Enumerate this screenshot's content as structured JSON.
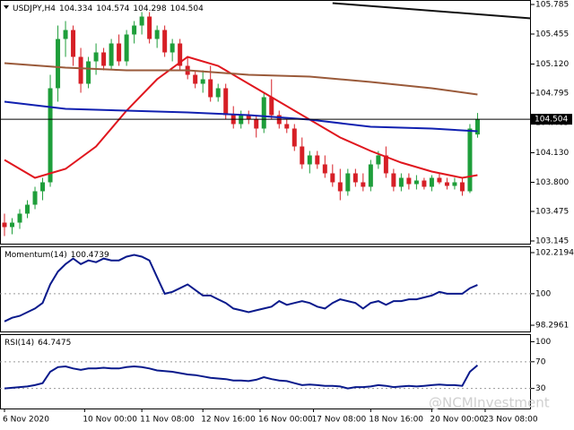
{
  "chart_data": [
    {
      "type": "candlestick",
      "symbol": "USDJPY,H4",
      "open": [
        103.35,
        103.3,
        103.35,
        103.45,
        103.55,
        103.7,
        103.8,
        104.85,
        105.4,
        105.5,
        105.2,
        104.9,
        105.15,
        105.25,
        105.1,
        105.35,
        105.15,
        105.45,
        105.55,
        105.65,
        105.4,
        105.5,
        105.25,
        105.35,
        105.1,
        105.0,
        104.9,
        104.95,
        104.75,
        104.85,
        104.55,
        104.45,
        104.55,
        104.5,
        104.4,
        104.75,
        104.55,
        104.45,
        104.4,
        104.2,
        104.0,
        104.1,
        104.0,
        103.9,
        103.8,
        103.7,
        103.9,
        103.8,
        103.75,
        104.0,
        104.1,
        103.9,
        103.75,
        103.85,
        103.78,
        103.82,
        103.75,
        103.85,
        103.8,
        103.76,
        103.8,
        103.7,
        104.334
      ],
      "high": [
        103.45,
        103.4,
        103.5,
        103.6,
        103.75,
        103.85,
        105.0,
        105.55,
        105.6,
        105.55,
        105.3,
        105.2,
        105.35,
        105.3,
        105.4,
        105.45,
        105.5,
        105.6,
        105.7,
        105.7,
        105.55,
        105.55,
        105.4,
        105.4,
        105.2,
        105.05,
        105.05,
        105.1,
        104.9,
        104.9,
        104.65,
        104.6,
        104.6,
        104.55,
        104.8,
        104.95,
        104.6,
        104.5,
        104.45,
        104.3,
        104.15,
        104.15,
        104.1,
        104.0,
        103.95,
        103.95,
        103.95,
        103.9,
        104.05,
        104.15,
        104.2,
        103.95,
        103.9,
        103.9,
        103.88,
        103.85,
        103.88,
        103.9,
        103.85,
        103.85,
        103.85,
        104.45,
        104.574
      ],
      "low": [
        103.2,
        103.22,
        103.28,
        103.4,
        103.5,
        103.6,
        103.75,
        104.7,
        105.2,
        105.1,
        104.8,
        104.85,
        105.0,
        105.05,
        105.05,
        105.1,
        105.1,
        105.35,
        105.45,
        105.35,
        105.3,
        105.2,
        105.15,
        105.05,
        104.95,
        104.85,
        104.8,
        104.7,
        104.7,
        104.5,
        104.4,
        104.4,
        104.45,
        104.3,
        104.35,
        104.5,
        104.4,
        104.35,
        104.15,
        103.95,
        103.9,
        103.95,
        103.85,
        103.75,
        103.6,
        103.65,
        103.75,
        103.7,
        103.7,
        103.95,
        103.85,
        103.7,
        103.7,
        103.72,
        103.72,
        103.72,
        103.7,
        103.78,
        103.72,
        103.72,
        103.65,
        103.68,
        104.298
      ],
      "close": [
        103.3,
        103.35,
        103.45,
        103.55,
        103.7,
        103.8,
        104.85,
        105.4,
        105.5,
        105.2,
        104.9,
        105.15,
        105.25,
        105.1,
        105.35,
        105.15,
        105.45,
        105.55,
        105.65,
        105.4,
        105.5,
        105.25,
        105.35,
        105.1,
        105.0,
        104.9,
        104.95,
        104.75,
        104.85,
        104.55,
        104.45,
        104.55,
        104.5,
        104.4,
        104.75,
        104.55,
        104.45,
        104.4,
        104.2,
        104.0,
        104.1,
        104.0,
        103.9,
        103.8,
        103.7,
        103.9,
        103.8,
        103.75,
        104.0,
        104.1,
        103.9,
        103.75,
        103.85,
        103.78,
        103.82,
        103.75,
        103.85,
        103.8,
        103.76,
        103.8,
        103.7,
        104.4,
        104.504
      ],
      "up_color": "#1e9e3a",
      "down_color": "#d61f26",
      "series": [
        {
          "color": "#e0161e",
          "x": [
            0,
            4,
            8,
            12,
            16,
            20,
            24,
            28,
            32,
            36,
            40,
            44,
            48,
            52,
            56,
            60,
            62
          ],
          "values": [
            104.05,
            103.85,
            103.95,
            104.2,
            104.6,
            104.95,
            105.2,
            105.1,
            104.9,
            104.7,
            104.5,
            104.3,
            104.15,
            104.02,
            103.92,
            103.85,
            103.88
          ]
        },
        {
          "color": "#1020b0",
          "x": [
            0,
            8,
            16,
            24,
            32,
            40,
            48,
            56,
            62
          ],
          "values": [
            104.7,
            104.62,
            104.6,
            104.58,
            104.55,
            104.5,
            104.42,
            104.4,
            104.37
          ]
        },
        {
          "color": "#9a5a3a",
          "x": [
            0,
            8,
            16,
            24,
            32,
            40,
            48,
            56,
            62
          ],
          "values": [
            105.13,
            105.08,
            105.05,
            105.05,
            105.0,
            104.98,
            104.92,
            104.85,
            104.78
          ]
        },
        {
          "color": "#111111",
          "x": [
            43,
            69
          ],
          "values": [
            105.8,
            105.63
          ]
        }
      ],
      "xlim": [
        -0.5,
        69
      ],
      "ylim": [
        103.115,
        105.835
      ],
      "yticks": [
        105.785,
        105.455,
        {
          "value": 105.12,
          "label": "105.120"
        },
        104.795,
        104.465,
        {
          "value": 104.13,
          "label": "104.130"
        },
        {
          "value": 103.8,
          "label": "103.800"
        },
        103.475,
        103.145
      ],
      "xticks": [
        {
          "value": 0,
          "label": "6 Nov 2020"
        },
        {
          "value": 10.5,
          "label": "10 Nov 00:00"
        },
        {
          "value": 18,
          "label": "11 Nov 08:00"
        },
        {
          "value": 26,
          "label": "12 Nov 16:00"
        },
        {
          "value": 33.5,
          "label": "16 Nov 00:00"
        },
        {
          "value": 40.5,
          "label": "17 Nov 08:00"
        },
        {
          "value": 48,
          "label": "18 Nov 16:00"
        },
        {
          "value": 56,
          "label": "20 Nov 00:00"
        },
        {
          "value": 63,
          "label": "23 Nov 08:00"
        }
      ],
      "watermark": "@NCMInvestment"
    },
    {
      "type": "line",
      "title": "Momentum(14)",
      "color": "#0a1a8c",
      "values": [
        98.5,
        98.7,
        98.8,
        99.0,
        99.2,
        99.5,
        100.5,
        101.2,
        101.6,
        101.9,
        101.6,
        101.8,
        101.7,
        101.9,
        101.8,
        101.8,
        102.0,
        102.1,
        102.0,
        101.8,
        100.9,
        100.0,
        100.1,
        100.3,
        100.5,
        100.2,
        99.9,
        99.9,
        99.7,
        99.5,
        99.2,
        99.1,
        99.0,
        99.1,
        99.2,
        99.3,
        99.6,
        99.4,
        99.5,
        99.6,
        99.5,
        99.3,
        99.2,
        99.5,
        99.7,
        99.6,
        99.5,
        99.2,
        99.5,
        99.6,
        99.4,
        99.6,
        99.6,
        99.7,
        99.7,
        99.8,
        99.9,
        100.1,
        100.0,
        100.0,
        100.0,
        100.3,
        100.4739
      ],
      "ylim": [
        97.96,
        102.51
      ],
      "yticks": [
        102.2194,
        100,
        98.2961
      ],
      "levels": [
        100
      ]
    },
    {
      "type": "line",
      "title": "RSI(14)",
      "color": "#0a1a8c",
      "values": [
        30,
        31,
        32,
        33,
        35,
        38,
        55,
        62,
        63,
        60,
        58,
        60,
        60,
        61,
        60,
        60,
        62,
        63,
        62,
        60,
        57,
        56,
        55,
        53,
        51,
        50,
        48,
        46,
        45,
        44,
        42,
        42,
        41,
        43,
        47,
        44,
        42,
        41,
        38,
        35,
        36,
        35,
        34,
        34,
        33,
        30,
        32,
        32,
        33,
        35,
        34,
        32,
        33,
        34,
        33,
        34,
        35,
        36,
        35,
        35,
        34,
        55,
        64.7475
      ],
      "ylim": [
        0,
        110
      ],
      "yticks": [
        100,
        70,
        30
      ],
      "levels": [
        70,
        30
      ]
    }
  ]
}
